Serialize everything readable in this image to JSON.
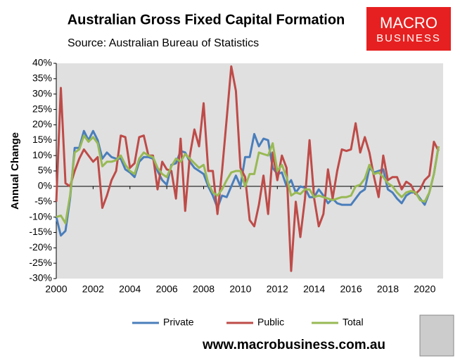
{
  "chart_data": {
    "type": "line",
    "title": "Australian Gross Fixed Capital Formation",
    "subtitle": "Source: Australian Bureau of Statistics",
    "ylabel": "Annual Change",
    "logo": [
      "MACRO",
      "BUSINESS"
    ],
    "footer": "www.macrobusiness.com.au",
    "x": [
      2000,
      2000.25,
      2000.5,
      2000.75,
      2001,
      2001.25,
      2001.5,
      2001.75,
      2002,
      2002.25,
      2002.5,
      2002.75,
      2003,
      2003.25,
      2003.5,
      2003.75,
      2004,
      2004.25,
      2004.5,
      2004.75,
      2005,
      2005.25,
      2005.5,
      2005.75,
      2006,
      2006.25,
      2006.5,
      2006.75,
      2007,
      2007.25,
      2007.5,
      2007.75,
      2008,
      2008.25,
      2008.5,
      2008.75,
      2009,
      2009.25,
      2009.5,
      2009.75,
      2010,
      2010.25,
      2010.5,
      2010.75,
      2011,
      2011.25,
      2011.5,
      2011.75,
      2012,
      2012.25,
      2012.5,
      2012.75,
      2013,
      2013.25,
      2013.5,
      2013.75,
      2014,
      2014.25,
      2014.5,
      2014.75,
      2015,
      2015.25,
      2015.5,
      2015.75,
      2016,
      2016.25,
      2016.5,
      2016.75,
      2017,
      2017.25,
      2017.5,
      2017.75,
      2018,
      2018.25,
      2018.5,
      2018.75,
      2019,
      2019.25,
      2019.5,
      2019.75,
      2020,
      2020.25,
      2020.5,
      2020.75
    ],
    "series": [
      {
        "name": "Private",
        "color": "#4a7ebb",
        "values": [
          -10,
          -16,
          -14.5,
          -4,
          12.5,
          12.5,
          18,
          15,
          18,
          15,
          9,
          11,
          9.5,
          9,
          9,
          5.5,
          4.5,
          3,
          8,
          9.5,
          9.5,
          9,
          5,
          2,
          0.5,
          7,
          7.5,
          11.5,
          11,
          8,
          6,
          5,
          4,
          0,
          -3,
          -7,
          -3,
          -3.5,
          0,
          3.5,
          0,
          9.5,
          9.5,
          17,
          13,
          15.5,
          15,
          6,
          4,
          4.5,
          0,
          2,
          -2,
          0,
          -0.5,
          -3.5,
          -3.5,
          -1,
          -3,
          -5.5,
          -4,
          -5.5,
          -6,
          -6,
          -6,
          -4,
          -2,
          -1,
          6,
          4.5,
          5,
          5.5,
          -1,
          -2,
          -4,
          -5.5,
          -3,
          -2,
          -2,
          -4,
          -6,
          -2,
          4,
          13
        ]
      },
      {
        "name": "Public",
        "color": "#be4b48",
        "values": [
          -5,
          32,
          1,
          0,
          5,
          9,
          12,
          10,
          8,
          9.5,
          -7,
          -3,
          2,
          5,
          16.5,
          16,
          6,
          7.5,
          16,
          16.5,
          10,
          10,
          -1,
          8,
          5.5,
          5,
          -4,
          15.5,
          -8,
          10,
          18.5,
          13,
          27,
          5,
          5,
          -9,
          5,
          22,
          39,
          31,
          6,
          3,
          -11,
          -13,
          -6,
          3.5,
          -9,
          11,
          2,
          10,
          6,
          -27.5,
          -5,
          -16.5,
          -4,
          15,
          -4,
          -13,
          -9,
          5.5,
          -4,
          5,
          12,
          11.5,
          12,
          20.5,
          11,
          16,
          11,
          3,
          -3.5,
          10,
          2,
          3,
          3,
          -1,
          1.5,
          0.5,
          -2.5,
          -1,
          2,
          3.5,
          14.5,
          11.5
        ]
      },
      {
        "name": "Total",
        "color": "#98b954",
        "values": [
          -10,
          -9.5,
          -12,
          -3,
          11,
          12,
          16.5,
          14.5,
          16,
          14,
          6.5,
          8,
          8,
          8.5,
          10,
          7,
          5,
          4,
          9,
          11,
          10,
          9.5,
          6,
          4,
          3,
          6.5,
          9,
          8,
          10.5,
          9,
          7.5,
          6,
          7,
          1,
          -2,
          -3,
          -1,
          2,
          4.5,
          5,
          5,
          0,
          4,
          4,
          11,
          10.5,
          10,
          14,
          5,
          7,
          3,
          -3,
          -2,
          -2.5,
          -1,
          -1,
          -3.5,
          -3,
          -3.5,
          -4,
          -4.5,
          -4,
          -3.5,
          -3.5,
          -3,
          0,
          0.5,
          2.5,
          7,
          4,
          4.5,
          3,
          1,
          0,
          -2,
          -3.5,
          -2,
          -1.5,
          -2,
          -4.5,
          -5,
          -2,
          4,
          13
        ]
      }
    ],
    "xlim": [
      2000,
      2021
    ],
    "xticks": [
      2000,
      2002,
      2004,
      2006,
      2008,
      2010,
      2012,
      2014,
      2016,
      2018,
      2020
    ],
    "ylim": [
      -30,
      40
    ],
    "yticks": [
      {
        "value": -30,
        "label": "-30%"
      },
      {
        "value": -25,
        "label": "-25%"
      },
      {
        "value": -20,
        "label": "-20%"
      },
      {
        "value": -15,
        "label": "-15%"
      },
      {
        "value": -10,
        "label": "-10%"
      },
      {
        "value": -5,
        "label": "-5%"
      },
      {
        "value": 0,
        "label": "0%"
      },
      {
        "value": 5,
        "label": "5%"
      },
      {
        "value": 10,
        "label": "10%"
      },
      {
        "value": 15,
        "label": "15%"
      },
      {
        "value": 20,
        "label": "20%"
      },
      {
        "value": 25,
        "label": "25%"
      },
      {
        "value": 30,
        "label": "30%"
      },
      {
        "value": 35,
        "label": "35%"
      },
      {
        "value": 40,
        "label": "40%"
      }
    ],
    "grid": false,
    "legend": "bottom"
  }
}
